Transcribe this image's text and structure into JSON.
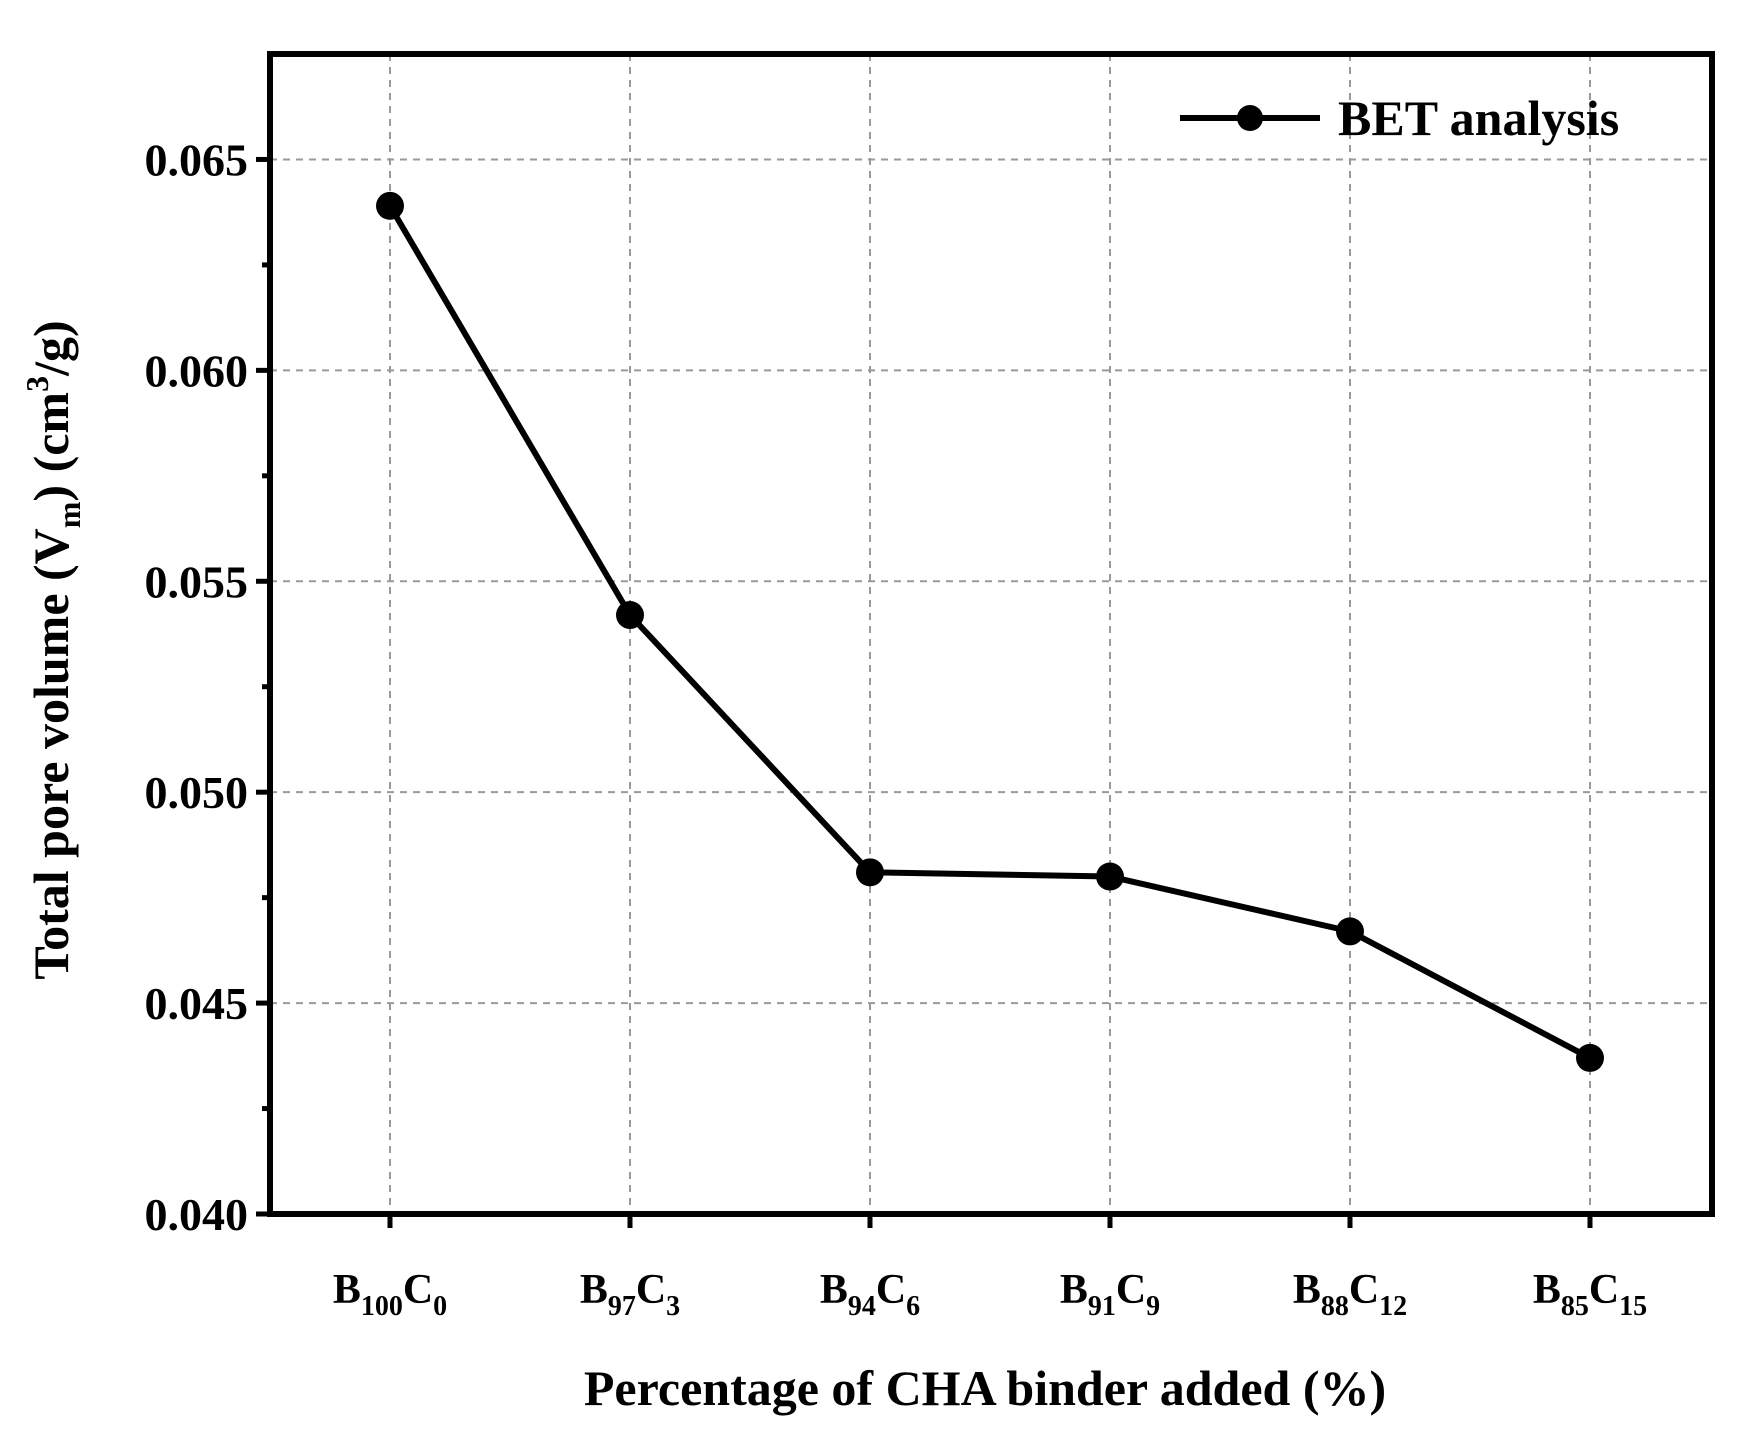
{
  "chart_data": {
    "type": "line",
    "categories": [
      {
        "base": "B",
        "base_sub": "100",
        "binder": "C",
        "binder_sub": "0"
      },
      {
        "base": "B",
        "base_sub": "97",
        "binder": "C",
        "binder_sub": "3"
      },
      {
        "base": "B",
        "base_sub": "94",
        "binder": "C",
        "binder_sub": "6"
      },
      {
        "base": "B",
        "base_sub": "91",
        "binder": "C",
        "binder_sub": "9"
      },
      {
        "base": "B",
        "base_sub": "88",
        "binder": "C",
        "binder_sub": "12"
      },
      {
        "base": "B",
        "base_sub": "85",
        "binder": "C",
        "binder_sub": "15"
      }
    ],
    "series": [
      {
        "name": "BET analysis",
        "values": [
          0.0639,
          0.0542,
          0.0481,
          0.048,
          0.0467,
          0.0437
        ]
      }
    ],
    "xlabel": "Percentage of CHA binder added (%)",
    "ylabel": {
      "prefix": "Total pore volume (V",
      "sub": "m",
      "middle": ") (cm",
      "sup": "3",
      "suffix": "/g)"
    },
    "ylim": [
      0.04,
      0.0675
    ],
    "yticks": [
      "0.040",
      "0.045",
      "0.050",
      "0.055",
      "0.060",
      "0.065"
    ],
    "grid": true,
    "legend_position": "top-right",
    "colors": {
      "line": "#000000",
      "grid": "#9a9a9a",
      "frame": "#000000"
    }
  }
}
